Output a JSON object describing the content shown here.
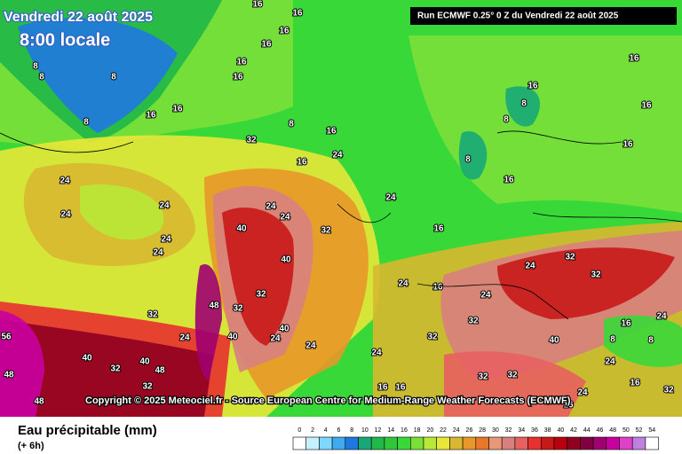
{
  "header": {
    "date": "Vendredi 22 août 2025",
    "time": "8:00 locale",
    "run": "Run ECMWF 0.25° 0 Z du Vendredi 22 août 2025"
  },
  "copyright": "Copyright © 2025 Meteociel.fr - Source European Centre for Medium-Range Weather Forecasts (ECMWF)",
  "legend": {
    "title": "Eau précipitable (mm)",
    "subtitle": "(+ 6h)",
    "values": [
      0,
      2,
      4,
      6,
      8,
      10,
      12,
      14,
      16,
      18,
      20,
      22,
      24,
      26,
      28,
      30,
      32,
      34,
      36,
      38,
      40,
      42,
      44,
      46,
      48,
      50,
      52,
      54
    ],
    "colors": [
      "#ffffff",
      "#c4f0ff",
      "#7fd8ff",
      "#40aaf0",
      "#1f78e0",
      "#18a878",
      "#20b848",
      "#30c838",
      "#38d838",
      "#7ae038",
      "#b8e838",
      "#e8e838",
      "#d8b830",
      "#e89828",
      "#e87828",
      "#e89878",
      "#d88080",
      "#e86060",
      "#e83030",
      "#c81818",
      "#b80010",
      "#900020",
      "#800040",
      "#a00070",
      "#c800a0",
      "#e040c8",
      "#c080e0",
      "#ffffff"
    ]
  },
  "map": {
    "contour_labels": [
      16,
      16,
      16,
      16,
      16,
      16,
      8,
      8,
      8,
      8,
      16,
      16,
      8,
      16,
      32,
      16,
      24,
      8,
      8,
      16,
      16,
      16,
      8,
      16,
      16,
      24,
      24,
      24,
      24,
      24,
      24,
      24,
      40,
      40,
      32,
      24,
      16,
      16,
      24,
      32,
      32,
      48,
      40,
      40,
      24,
      24,
      32,
      24,
      40,
      40,
      48,
      48,
      56,
      48,
      32,
      32,
      24,
      32,
      32,
      24,
      32,
      32,
      40,
      24,
      16,
      8,
      8,
      16,
      24,
      32,
      32,
      32,
      16,
      16,
      24,
      16,
      24
    ]
  }
}
